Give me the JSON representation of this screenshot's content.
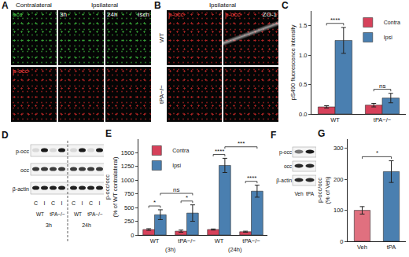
{
  "panels": {
    "A": {
      "letter": "A",
      "headers": [
        "Contralateral",
        "Ipsilateral"
      ],
      "rows": [
        {
          "tint": "#3fbf3f",
          "cells": [
            {
              "labels": [
                "occ"
              ]
            },
            {
              "labels": [
                "3h"
              ]
            },
            {
              "labels": [
                "24h",
                "Isch"
              ]
            }
          ]
        },
        {
          "tint": "#d42a2a",
          "cells": [
            {
              "labels": [
                "p-occ"
              ]
            },
            {
              "labels": []
            },
            {
              "labels": []
            }
          ]
        }
      ]
    },
    "B": {
      "letter": "B",
      "header": "Ipsilateral",
      "row_labels": [
        "WT",
        "tPA−/−"
      ],
      "rows": [
        {
          "tint": "#d42a2a",
          "cells": [
            {
              "labels": [
                "p-occ"
              ]
            },
            {
              "labels": [
                "p-occ",
                "ZO-1"
              ]
            }
          ]
        },
        {
          "tint": "#d42a2a",
          "cells": [
            {
              "labels": []
            },
            {
              "labels": []
            }
          ]
        }
      ]
    },
    "stain_colors": {
      "occ": "#4cd64c",
      "p-occ": "#ff4040",
      "ZO-1": "#ffffff"
    },
    "D": {
      "letter": "D",
      "rows": [
        "p-occ",
        "occ",
        "β-actin"
      ],
      "lanes": [
        "C",
        "I",
        "C",
        "I",
        "C",
        "I",
        "C",
        "I"
      ],
      "genotypes": [
        "WT",
        "tPA−/−",
        "WT",
        "tPA−/−"
      ],
      "times": [
        "3h",
        "24h"
      ]
    },
    "F": {
      "letter": "F",
      "rows": [
        "p-occ",
        "occ",
        "β-actin"
      ],
      "lanes": [
        "Veh",
        "tPA"
      ]
    }
  },
  "chart_data": [
    {
      "panel": "C",
      "type": "bar",
      "y_label": "pS490 fluorescence intensity",
      "categories": [
        "WT",
        "tPA−/−"
      ],
      "series": [
        {
          "name": "Contra",
          "color": "#d6415a",
          "values": [
            0.12,
            0.15
          ],
          "errors": [
            0.02,
            0.03
          ]
        },
        {
          "name": "Ipsi",
          "color": "#4a7fb0",
          "values": [
            1.25,
            0.27
          ],
          "errors": [
            0.22,
            0.08
          ]
        }
      ],
      "ylim": [
        0,
        1.75
      ],
      "yticks": [
        {
          "value": 0,
          "label": "0.0"
        },
        {
          "value": 0.5,
          "label": "0.5"
        },
        {
          "value": 1,
          "label": "1.0"
        },
        {
          "value": 1.5,
          "label": "1.5"
        }
      ],
      "legend": "top right",
      "comparisons": [
        {
          "a": [
            0,
            0
          ],
          "b": [
            0,
            1
          ],
          "label": "****"
        },
        {
          "a": [
            1,
            0
          ],
          "b": [
            1,
            1
          ],
          "label": "ns"
        }
      ]
    },
    {
      "panel": "E",
      "type": "bar",
      "y_label": "p-occ/occ\n(% of WT contralateral)",
      "categories": [
        "WT",
        "tPA−/−",
        "WT",
        "tPA−/−"
      ],
      "groups": [
        {
          "label": "(3h)",
          "categories": [
            0,
            1
          ]
        },
        {
          "label": "(24h)",
          "categories": [
            2,
            3
          ]
        }
      ],
      "series": [
        {
          "name": "Contra",
          "color": "#d6415a",
          "values": [
            100,
            70,
            100,
            60
          ],
          "errors": [
            15,
            20,
            10,
            10
          ]
        },
        {
          "name": "Ipsi",
          "color": "#4a7fb0",
          "values": [
            370,
            400,
            1270,
            800
          ],
          "errors": [
            90,
            150,
            130,
            110
          ]
        }
      ],
      "ylim": [
        0,
        1750
      ],
      "yticks": [
        0,
        250,
        500,
        750,
        1000,
        1250,
        1500
      ],
      "legend": "top left",
      "comparisons": [
        {
          "a": [
            0,
            0
          ],
          "b": [
            0,
            1
          ],
          "label": "*"
        },
        {
          "a": [
            1,
            0
          ],
          "b": [
            1,
            1
          ],
          "label": "*"
        },
        {
          "a": [
            0,
            1
          ],
          "b": [
            1,
            1
          ],
          "label": "ns"
        },
        {
          "a": [
            2,
            0
          ],
          "b": [
            2,
            1
          ],
          "label": "****"
        },
        {
          "a": [
            3,
            0
          ],
          "b": [
            3,
            1
          ],
          "label": "****"
        },
        {
          "a": [
            2,
            1
          ],
          "b": [
            3,
            1
          ],
          "label": "***"
        }
      ]
    },
    {
      "panel": "G",
      "type": "bar",
      "y_label": "p-occ/occ\n(% of Veh)",
      "categories": [
        "Veh",
        "tPA"
      ],
      "series": [
        {
          "colors": [
            "#e0707f",
            "#4a7fb0"
          ],
          "values": [
            100,
            225
          ],
          "errors": [
            12,
            35
          ]
        }
      ],
      "ylim": [
        0,
        330
      ],
      "yticks": [
        0,
        100,
        200,
        300
      ],
      "comparisons": [
        {
          "a": [
            0,
            0
          ],
          "b": [
            1,
            0
          ],
          "label": "*"
        }
      ]
    }
  ]
}
